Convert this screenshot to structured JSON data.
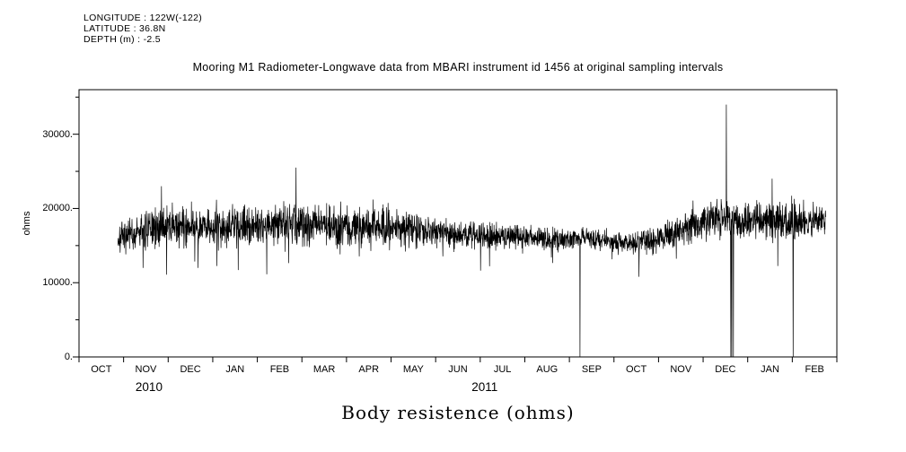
{
  "meta": {
    "longitude": "LONGITUDE : 122W(-122)",
    "latitude": "LATITUDE : 36.8N",
    "depth": "DEPTH (m) : -2.5"
  },
  "chart_data": {
    "type": "line",
    "title": "Mooring M1 Radiometer-Longwave data from MBARI instrument id 1456 at original sampling intervals",
    "ylabel": "ohms",
    "xlabel": "Body resistence (ohms)",
    "series_color": "#000000",
    "ylim": [
      0,
      36000
    ],
    "yticks": [
      {
        "value": 0,
        "label": "0."
      },
      {
        "value": 10000,
        "label": "10000."
      },
      {
        "value": 20000,
        "label": "20000."
      },
      {
        "value": 30000,
        "label": "30000."
      }
    ],
    "minor_ytick_step": 5000,
    "months": [
      "OCT",
      "NOV",
      "DEC",
      "JAN",
      "FEB",
      "MAR",
      "APR",
      "MAY",
      "JUN",
      "JUL",
      "AUG",
      "SEP",
      "OCT",
      "NOV",
      "DEC",
      "JAN",
      "FEB"
    ],
    "year_labels": [
      {
        "label": "2010",
        "month_center": 1.57
      },
      {
        "label": "2011",
        "month_center": 9.1
      }
    ],
    "x_range_months": [
      0,
      17
    ],
    "data_range_months": [
      0.87,
      16.75
    ],
    "baseline": [
      [
        0.87,
        15900,
        1100
      ],
      [
        1.3,
        16800,
        1300
      ],
      [
        1.9,
        17600,
        1500
      ],
      [
        2.9,
        17800,
        1400
      ],
      [
        3.9,
        17600,
        1400
      ],
      [
        4.9,
        18100,
        1650
      ],
      [
        5.9,
        17600,
        1400
      ],
      [
        6.9,
        17500,
        1400
      ],
      [
        7.9,
        16900,
        1200
      ],
      [
        8.9,
        16400,
        1000
      ],
      [
        9.7,
        16100,
        900
      ],
      [
        10.5,
        15900,
        850
      ],
      [
        11.3,
        16100,
        750
      ],
      [
        12.3,
        15300,
        800
      ],
      [
        12.9,
        15700,
        950
      ],
      [
        13.5,
        17300,
        1300
      ],
      [
        14.3,
        18500,
        1400
      ],
      [
        15.1,
        18300,
        1400
      ],
      [
        15.6,
        18500,
        1550
      ],
      [
        16.4,
        18300,
        1200
      ],
      [
        16.75,
        18700,
        900
      ]
    ],
    "extremes": [
      {
        "x": 1.85,
        "value": 23000
      },
      {
        "x": 3.57,
        "value": 11700
      },
      {
        "x": 4.87,
        "value": 25500
      },
      {
        "x": 6.6,
        "value": 21200
      },
      {
        "x": 11.24,
        "value": 0
      },
      {
        "x": 12.56,
        "value": 10800
      },
      {
        "x": 14.52,
        "value": 34000
      },
      {
        "x": 14.62,
        "value": 0
      },
      {
        "x": 14.64,
        "value": 0
      },
      {
        "x": 14.68,
        "value": 0
      },
      {
        "x": 15.55,
        "value": 24000
      },
      {
        "x": 16.02,
        "value": 0
      }
    ],
    "noise_seed": 7,
    "samples": 3000,
    "dip_probability": 0.012,
    "dip_scale": 2.6
  }
}
